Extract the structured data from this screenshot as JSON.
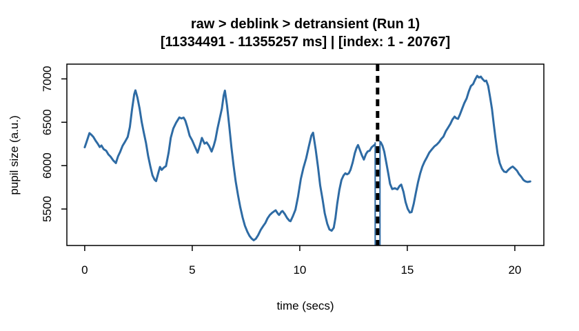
{
  "figure": {
    "title": "raw > deblink > detransient (Run 1)",
    "subtitle": "[11334491 - 11355257 ms] | [index: 1 - 20767]",
    "xlabel": "time (secs)",
    "ylabel": "pupil size (a.u.)"
  },
  "chart_data": {
    "type": "line",
    "title": "raw > deblink > detransient (Run 1)",
    "subtitle": "[11334491 - 11355257 ms] | [index: 1 - 20767]",
    "xlabel": "time (secs)",
    "ylabel": "pupil size (a.u.)",
    "x_ticks": [
      0,
      5,
      10,
      15,
      20
    ],
    "y_ticks": [
      5500,
      6000,
      6500,
      7000
    ],
    "xlim": [
      -0.83,
      21.35
    ],
    "ylim": [
      5080,
      7170
    ],
    "grid": false,
    "legend": false,
    "line_color": "#2e6ba4",
    "line_width": 3,
    "axis_color": "#000000",
    "event_marker": {
      "time_secs": 13.62,
      "line_style": "dashed",
      "line_color": "#000000",
      "casing_color": "#ffffff",
      "backing_color": "#2e6ba4",
      "backing_from_value": 6270
    },
    "series": [
      {
        "name": "pupil size",
        "points": [
          [
            0.0,
            6212
          ],
          [
            0.07,
            6262
          ],
          [
            0.14,
            6315
          ],
          [
            0.22,
            6375
          ],
          [
            0.3,
            6358
          ],
          [
            0.4,
            6332
          ],
          [
            0.5,
            6290
          ],
          [
            0.6,
            6255
          ],
          [
            0.7,
            6215
          ],
          [
            0.78,
            6232
          ],
          [
            0.88,
            6190
          ],
          [
            1.0,
            6172
          ],
          [
            1.1,
            6130
          ],
          [
            1.2,
            6105
          ],
          [
            1.32,
            6062
          ],
          [
            1.45,
            6030
          ],
          [
            1.55,
            6108
          ],
          [
            1.65,
            6160
          ],
          [
            1.76,
            6228
          ],
          [
            1.88,
            6278
          ],
          [
            2.0,
            6332
          ],
          [
            2.1,
            6445
          ],
          [
            2.2,
            6645
          ],
          [
            2.3,
            6822
          ],
          [
            2.36,
            6868
          ],
          [
            2.45,
            6788
          ],
          [
            2.55,
            6660
          ],
          [
            2.65,
            6502
          ],
          [
            2.75,
            6378
          ],
          [
            2.85,
            6262
          ],
          [
            2.95,
            6112
          ],
          [
            3.05,
            5992
          ],
          [
            3.15,
            5888
          ],
          [
            3.25,
            5838
          ],
          [
            3.32,
            5822
          ],
          [
            3.42,
            5915
          ],
          [
            3.5,
            5985
          ],
          [
            3.58,
            5952
          ],
          [
            3.68,
            5978
          ],
          [
            3.78,
            5995
          ],
          [
            3.9,
            6148
          ],
          [
            4.0,
            6320
          ],
          [
            4.12,
            6428
          ],
          [
            4.25,
            6495
          ],
          [
            4.4,
            6556
          ],
          [
            4.5,
            6544
          ],
          [
            4.6,
            6554
          ],
          [
            4.68,
            6518
          ],
          [
            4.78,
            6438
          ],
          [
            4.88,
            6345
          ],
          [
            5.0,
            6290
          ],
          [
            5.12,
            6222
          ],
          [
            5.25,
            6150
          ],
          [
            5.35,
            6228
          ],
          [
            5.45,
            6320
          ],
          [
            5.57,
            6254
          ],
          [
            5.67,
            6268
          ],
          [
            5.78,
            6228
          ],
          [
            5.9,
            6162
          ],
          [
            6.0,
            6230
          ],
          [
            6.08,
            6302
          ],
          [
            6.17,
            6422
          ],
          [
            6.27,
            6535
          ],
          [
            6.38,
            6658
          ],
          [
            6.46,
            6805
          ],
          [
            6.52,
            6865
          ],
          [
            6.62,
            6692
          ],
          [
            6.72,
            6458
          ],
          [
            6.82,
            6215
          ],
          [
            6.92,
            6005
          ],
          [
            7.02,
            5820
          ],
          [
            7.13,
            5660
          ],
          [
            7.23,
            5525
          ],
          [
            7.34,
            5405
          ],
          [
            7.45,
            5308
          ],
          [
            7.56,
            5240
          ],
          [
            7.66,
            5192
          ],
          [
            7.76,
            5160
          ],
          [
            7.86,
            5140
          ],
          [
            7.96,
            5158
          ],
          [
            8.06,
            5198
          ],
          [
            8.18,
            5258
          ],
          [
            8.29,
            5300
          ],
          [
            8.4,
            5340
          ],
          [
            8.5,
            5392
          ],
          [
            8.61,
            5432
          ],
          [
            8.72,
            5458
          ],
          [
            8.83,
            5478
          ],
          [
            8.88,
            5485
          ],
          [
            8.99,
            5445
          ],
          [
            9.04,
            5432
          ],
          [
            9.15,
            5471
          ],
          [
            9.2,
            5477
          ],
          [
            9.31,
            5440
          ],
          [
            9.41,
            5397
          ],
          [
            9.52,
            5365
          ],
          [
            9.57,
            5360
          ],
          [
            9.68,
            5418
          ],
          [
            9.8,
            5492
          ],
          [
            9.92,
            5645
          ],
          [
            10.05,
            5845
          ],
          [
            10.17,
            5975
          ],
          [
            10.3,
            6085
          ],
          [
            10.42,
            6220
          ],
          [
            10.54,
            6345
          ],
          [
            10.62,
            6380
          ],
          [
            10.74,
            6185
          ],
          [
            10.85,
            5982
          ],
          [
            10.95,
            5772
          ],
          [
            11.06,
            5610
          ],
          [
            11.16,
            5452
          ],
          [
            11.28,
            5330
          ],
          [
            11.38,
            5265
          ],
          [
            11.48,
            5250
          ],
          [
            11.58,
            5285
          ],
          [
            11.66,
            5400
          ],
          [
            11.74,
            5560
          ],
          [
            11.84,
            5720
          ],
          [
            11.94,
            5835
          ],
          [
            12.04,
            5888
          ],
          [
            12.12,
            5912
          ],
          [
            12.2,
            5900
          ],
          [
            12.28,
            5912
          ],
          [
            12.36,
            5952
          ],
          [
            12.46,
            6035
          ],
          [
            12.56,
            6145
          ],
          [
            12.64,
            6205
          ],
          [
            12.71,
            6238
          ],
          [
            12.8,
            6180
          ],
          [
            12.89,
            6118
          ],
          [
            12.98,
            6070
          ],
          [
            13.08,
            6135
          ],
          [
            13.16,
            6165
          ],
          [
            13.25,
            6172
          ],
          [
            13.34,
            6212
          ],
          [
            13.44,
            6232
          ],
          [
            13.54,
            6252
          ],
          [
            13.63,
            6268
          ],
          [
            13.7,
            6280
          ],
          [
            13.77,
            6268
          ],
          [
            13.85,
            6228
          ],
          [
            13.93,
            6160
          ],
          [
            14.02,
            6040
          ],
          [
            14.12,
            5905
          ],
          [
            14.2,
            5790
          ],
          [
            14.3,
            5730
          ],
          [
            14.42,
            5740
          ],
          [
            14.54,
            5726
          ],
          [
            14.64,
            5766
          ],
          [
            14.72,
            5782
          ],
          [
            14.82,
            5700
          ],
          [
            14.92,
            5580
          ],
          [
            15.02,
            5502
          ],
          [
            15.12,
            5460
          ],
          [
            15.2,
            5465
          ],
          [
            15.3,
            5560
          ],
          [
            15.4,
            5690
          ],
          [
            15.5,
            5810
          ],
          [
            15.6,
            5910
          ],
          [
            15.7,
            5988
          ],
          [
            15.8,
            6045
          ],
          [
            15.92,
            6100
          ],
          [
            16.02,
            6150
          ],
          [
            16.14,
            6188
          ],
          [
            16.26,
            6222
          ],
          [
            16.38,
            6245
          ],
          [
            16.48,
            6272
          ],
          [
            16.58,
            6308
          ],
          [
            16.68,
            6335
          ],
          [
            16.8,
            6400
          ],
          [
            16.9,
            6440
          ],
          [
            17.0,
            6480
          ],
          [
            17.1,
            6532
          ],
          [
            17.2,
            6565
          ],
          [
            17.28,
            6546
          ],
          [
            17.36,
            6540
          ],
          [
            17.45,
            6590
          ],
          [
            17.55,
            6655
          ],
          [
            17.65,
            6720
          ],
          [
            17.76,
            6775
          ],
          [
            17.86,
            6855
          ],
          [
            17.96,
            6918
          ],
          [
            18.06,
            6940
          ],
          [
            18.16,
            6995
          ],
          [
            18.25,
            7035
          ],
          [
            18.33,
            7016
          ],
          [
            18.42,
            7026
          ],
          [
            18.5,
            6998
          ],
          [
            18.6,
            6972
          ],
          [
            18.67,
            6980
          ],
          [
            18.76,
            6920
          ],
          [
            18.85,
            6790
          ],
          [
            18.94,
            6650
          ],
          [
            19.02,
            6480
          ],
          [
            19.1,
            6320
          ],
          [
            19.2,
            6140
          ],
          [
            19.3,
            6030
          ],
          [
            19.4,
            5965
          ],
          [
            19.5,
            5932
          ],
          [
            19.6,
            5925
          ],
          [
            19.7,
            5952
          ],
          [
            19.82,
            5978
          ],
          [
            19.9,
            5990
          ],
          [
            20.0,
            5968
          ],
          [
            20.1,
            5942
          ],
          [
            20.2,
            5902
          ],
          [
            20.3,
            5872
          ],
          [
            20.4,
            5835
          ],
          [
            20.5,
            5818
          ],
          [
            20.6,
            5812
          ],
          [
            20.72,
            5818
          ]
        ]
      }
    ]
  }
}
